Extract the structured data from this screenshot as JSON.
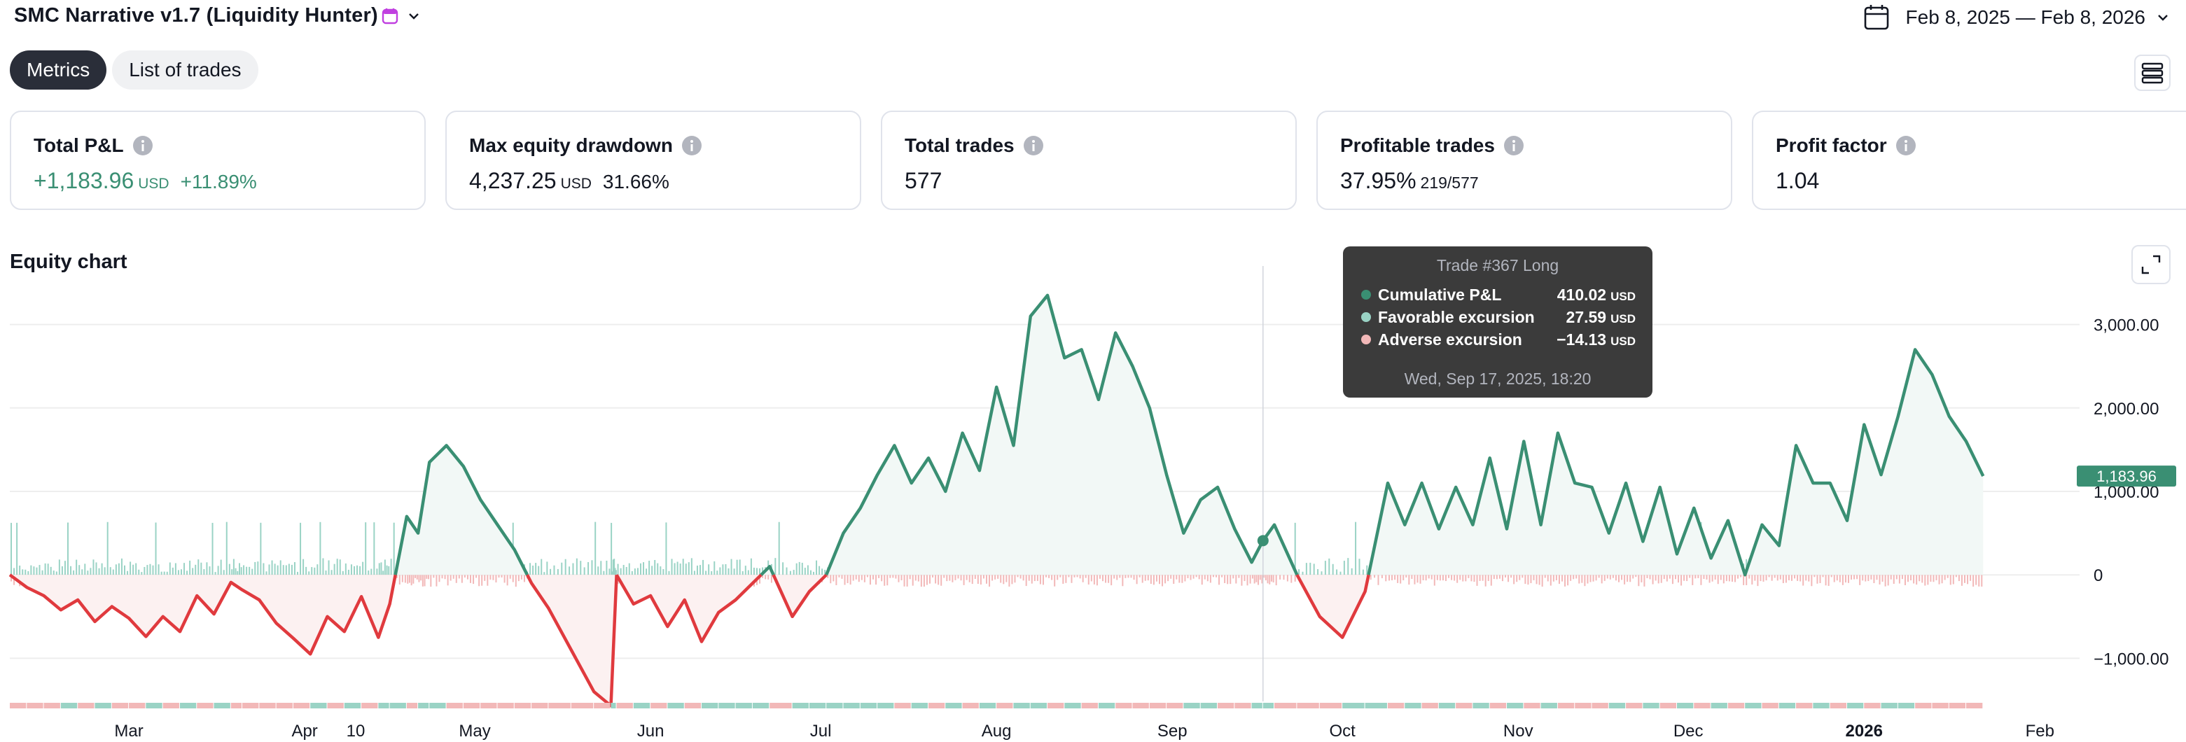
{
  "header": {
    "strategy_title": "SMC Narrative v1.7 (Liquidity Hunter)",
    "date_range": "Feb 8, 2025 — Feb 8, 2026",
    "accent": "#c03fe0"
  },
  "tabs": [
    {
      "label": "Metrics",
      "active": true
    },
    {
      "label": "List of trades",
      "active": false
    }
  ],
  "metrics": [
    {
      "label": "Total P&L",
      "value": "+1,183.96",
      "unit": "USD",
      "extra": "+11.89%",
      "positive": true
    },
    {
      "label": "Max equity drawdown",
      "value": "4,237.25",
      "unit": "USD",
      "extra": "31.66%",
      "positive": false
    },
    {
      "label": "Total trades",
      "value": "577",
      "unit": "",
      "extra": "",
      "positive": false
    },
    {
      "label": "Profitable trades",
      "value": "37.95%",
      "unit": "",
      "extra": "219/577",
      "positive": false
    },
    {
      "label": "Profit factor",
      "value": "1.04",
      "unit": "",
      "extra": "",
      "positive": false
    }
  ],
  "equity": {
    "title": "Equity chart",
    "last_value_label": "1,183.96"
  },
  "tooltip": {
    "title": "Trade #367 Long",
    "rows": [
      {
        "label": "Cumulative P&L",
        "value": "410.02",
        "unit": "USD",
        "color": "#3a8f73"
      },
      {
        "label": "Favorable excursion",
        "value": "27.59",
        "unit": "USD",
        "color": "#9ad3c5"
      },
      {
        "label": "Adverse excursion",
        "value": "−14.13",
        "unit": "USD",
        "color": "#f2b8b8"
      }
    ],
    "date": "Wed, Sep 17, 2025, 18:20"
  },
  "colors": {
    "positive": "#3a8f73",
    "negative": "#e03a3e",
    "pos_fill": "#f2f8f6",
    "neg_fill": "#fcf1f1",
    "run_up_bar": "#9ad3c5",
    "drawdown_bar": "#f2b8b8",
    "grid": "#eeeeee"
  },
  "chart_data": {
    "type": "line",
    "title": "Equity chart",
    "x_range": [
      "2025-02-08",
      "2026-02-08"
    ],
    "ylim": [
      -1500,
      3500
    ],
    "y_ticks": [
      -1000,
      0,
      1000,
      2000,
      3000
    ],
    "y_tick_labels": [
      "−1,000.00",
      "0",
      "1,000.00",
      "2,000.00",
      "3,000.00"
    ],
    "x_ticks": [
      {
        "date": "2025-03-01",
        "label": "Mar",
        "bold": false
      },
      {
        "date": "2025-04-01",
        "label": "Apr",
        "bold": false
      },
      {
        "date": "2025-04-10",
        "label": "10",
        "bold": false
      },
      {
        "date": "2025-05-01",
        "label": "May",
        "bold": false
      },
      {
        "date": "2025-06-01",
        "label": "Jun",
        "bold": false
      },
      {
        "date": "2025-07-01",
        "label": "Jul",
        "bold": false
      },
      {
        "date": "2025-08-01",
        "label": "Aug",
        "bold": false
      },
      {
        "date": "2025-09-01",
        "label": "Sep",
        "bold": false
      },
      {
        "date": "2025-10-01",
        "label": "Oct",
        "bold": false
      },
      {
        "date": "2025-11-01",
        "label": "Nov",
        "bold": false
      },
      {
        "date": "2025-12-01",
        "label": "Dec",
        "bold": false
      },
      {
        "date": "2026-01-01",
        "label": "2026",
        "bold": true
      },
      {
        "date": "2026-02-01",
        "label": "Feb",
        "bold": false
      }
    ],
    "grid": true,
    "series": [
      {
        "values_desc": "cumulative P&L (USD)",
        "points": [
          [
            "2025-02-08",
            0
          ],
          [
            "2025-02-11",
            -150
          ],
          [
            "2025-02-14",
            -250
          ],
          [
            "2025-02-17",
            -420
          ],
          [
            "2025-02-20",
            -300
          ],
          [
            "2025-02-23",
            -560
          ],
          [
            "2025-02-26",
            -380
          ],
          [
            "2025-03-01",
            -520
          ],
          [
            "2025-03-04",
            -740
          ],
          [
            "2025-03-07",
            -500
          ],
          [
            "2025-03-10",
            -680
          ],
          [
            "2025-03-13",
            -250
          ],
          [
            "2025-03-16",
            -470
          ],
          [
            "2025-03-19",
            -90
          ],
          [
            "2025-03-21",
            -180
          ],
          [
            "2025-03-24",
            -300
          ],
          [
            "2025-03-27",
            -580
          ],
          [
            "2025-03-30",
            -760
          ],
          [
            "2025-04-02",
            -950
          ],
          [
            "2025-04-05",
            -500
          ],
          [
            "2025-04-08",
            -680
          ],
          [
            "2025-04-11",
            -260
          ],
          [
            "2025-04-14",
            -750
          ],
          [
            "2025-04-16",
            -350
          ],
          [
            "2025-04-19",
            700
          ],
          [
            "2025-04-21",
            500
          ],
          [
            "2025-04-23",
            1350
          ],
          [
            "2025-04-26",
            1550
          ],
          [
            "2025-04-29",
            1300
          ],
          [
            "2025-05-02",
            900
          ],
          [
            "2025-05-05",
            600
          ],
          [
            "2025-05-08",
            300
          ],
          [
            "2025-05-11",
            -100
          ],
          [
            "2025-05-14",
            -400
          ],
          [
            "2025-05-18",
            -900
          ],
          [
            "2025-05-22",
            -1400
          ],
          [
            "2025-05-25",
            -1570
          ],
          [
            "2025-05-26",
            0
          ],
          [
            "2025-05-29",
            -350
          ],
          [
            "2025-06-01",
            -250
          ],
          [
            "2025-06-04",
            -620
          ],
          [
            "2025-06-07",
            -300
          ],
          [
            "2025-06-10",
            -800
          ],
          [
            "2025-06-13",
            -450
          ],
          [
            "2025-06-16",
            -300
          ],
          [
            "2025-06-19",
            -100
          ],
          [
            "2025-06-22",
            100
          ],
          [
            "2025-06-26",
            -500
          ],
          [
            "2025-06-29",
            -200
          ],
          [
            "2025-07-02",
            0
          ],
          [
            "2025-07-05",
            500
          ],
          [
            "2025-07-08",
            800
          ],
          [
            "2025-07-11",
            1200
          ],
          [
            "2025-07-14",
            1550
          ],
          [
            "2025-07-17",
            1100
          ],
          [
            "2025-07-20",
            1400
          ],
          [
            "2025-07-23",
            1000
          ],
          [
            "2025-07-26",
            1700
          ],
          [
            "2025-07-29",
            1250
          ],
          [
            "2025-08-01",
            2250
          ],
          [
            "2025-08-04",
            1550
          ],
          [
            "2025-08-07",
            3100
          ],
          [
            "2025-08-10",
            3350
          ],
          [
            "2025-08-13",
            2600
          ],
          [
            "2025-08-16",
            2700
          ],
          [
            "2025-08-19",
            2100
          ],
          [
            "2025-08-22",
            2900
          ],
          [
            "2025-08-25",
            2500
          ],
          [
            "2025-08-28",
            2000
          ],
          [
            "2025-08-31",
            1200
          ],
          [
            "2025-09-03",
            500
          ],
          [
            "2025-09-06",
            900
          ],
          [
            "2025-09-09",
            1050
          ],
          [
            "2025-09-12",
            550
          ],
          [
            "2025-09-15",
            150
          ],
          [
            "2025-09-17",
            410
          ],
          [
            "2025-09-19",
            600
          ],
          [
            "2025-09-23",
            0
          ],
          [
            "2025-09-27",
            -500
          ],
          [
            "2025-10-01",
            -750
          ],
          [
            "2025-10-05",
            -200
          ],
          [
            "2025-10-09",
            1100
          ],
          [
            "2025-10-12",
            600
          ],
          [
            "2025-10-15",
            1100
          ],
          [
            "2025-10-18",
            550
          ],
          [
            "2025-10-21",
            1050
          ],
          [
            "2025-10-24",
            600
          ],
          [
            "2025-10-27",
            1400
          ],
          [
            "2025-10-30",
            550
          ],
          [
            "2025-11-02",
            1600
          ],
          [
            "2025-11-05",
            600
          ],
          [
            "2025-11-08",
            1700
          ],
          [
            "2025-11-11",
            1100
          ],
          [
            "2025-11-14",
            1050
          ],
          [
            "2025-11-17",
            500
          ],
          [
            "2025-11-20",
            1100
          ],
          [
            "2025-11-23",
            400
          ],
          [
            "2025-11-26",
            1050
          ],
          [
            "2025-11-29",
            250
          ],
          [
            "2025-12-02",
            800
          ],
          [
            "2025-12-05",
            200
          ],
          [
            "2025-12-08",
            650
          ],
          [
            "2025-12-11",
            0
          ],
          [
            "2025-12-14",
            600
          ],
          [
            "2025-12-17",
            350
          ],
          [
            "2025-12-20",
            1550
          ],
          [
            "2025-12-23",
            1100
          ],
          [
            "2025-12-26",
            1100
          ],
          [
            "2025-12-29",
            650
          ],
          [
            "2026-01-01",
            1800
          ],
          [
            "2026-01-04",
            1200
          ],
          [
            "2026-01-07",
            1900
          ],
          [
            "2026-01-10",
            2700
          ],
          [
            "2026-01-13",
            2400
          ],
          [
            "2026-01-16",
            1900
          ],
          [
            "2026-01-19",
            1600
          ],
          [
            "2026-01-22",
            1184
          ]
        ]
      }
    ]
  }
}
